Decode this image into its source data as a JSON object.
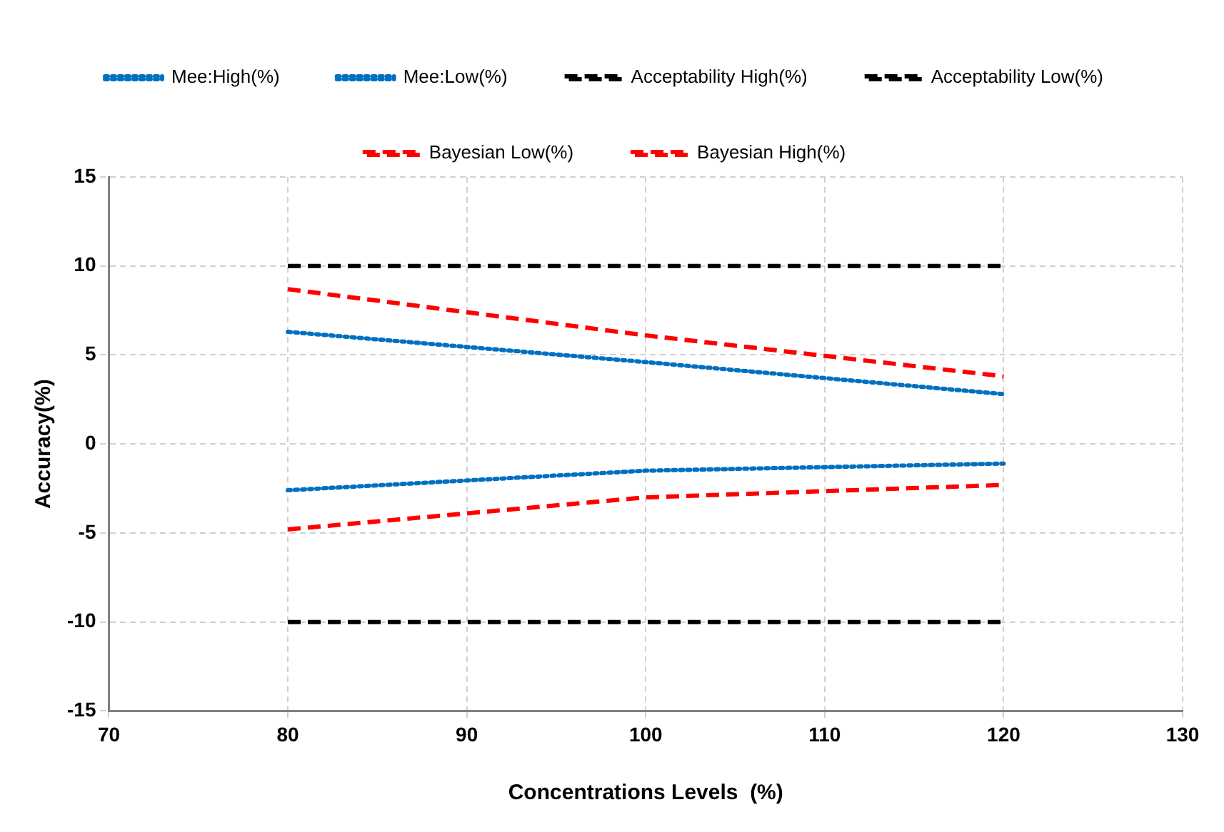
{
  "chart_data": {
    "type": "line",
    "xlabel": "Concentrations Levels  (%)",
    "ylabel": "Accuracy(%)",
    "x": [
      80,
      100,
      120
    ],
    "series": [
      {
        "name": "Mee:High(%)",
        "color": "#0070c0",
        "values": [
          6.3,
          4.6,
          2.8
        ],
        "line_style": "dotted"
      },
      {
        "name": "Mee:Low(%)",
        "color": "#0070c0",
        "values": [
          -2.6,
          -1.5,
          -1.1
        ],
        "line_style": "dotted"
      },
      {
        "name": "Acceptability High(%)",
        "color": "#000000",
        "values": [
          10,
          10,
          10
        ],
        "line_style": "dashed"
      },
      {
        "name": "Acceptability Low(%)",
        "color": "#000000",
        "values": [
          -10,
          -10,
          -10
        ],
        "line_style": "dashed"
      },
      {
        "name": "Bayesian Low(%)",
        "color": "#ff0000",
        "values": [
          -4.8,
          -3.0,
          -2.3
        ],
        "line_style": "dashed"
      },
      {
        "name": "Bayesian High(%)",
        "color": "#ff0000",
        "values": [
          8.7,
          6.1,
          3.8
        ],
        "line_style": "dashed"
      }
    ],
    "xlim": [
      70,
      130
    ],
    "xticks": [
      70,
      80,
      90,
      100,
      110,
      120,
      130
    ],
    "ylim": [
      -15,
      15
    ],
    "yticks": [
      -15,
      -10,
      -5,
      0,
      5,
      10,
      15
    ],
    "grid": true,
    "legend": "top",
    "marker": "none"
  }
}
